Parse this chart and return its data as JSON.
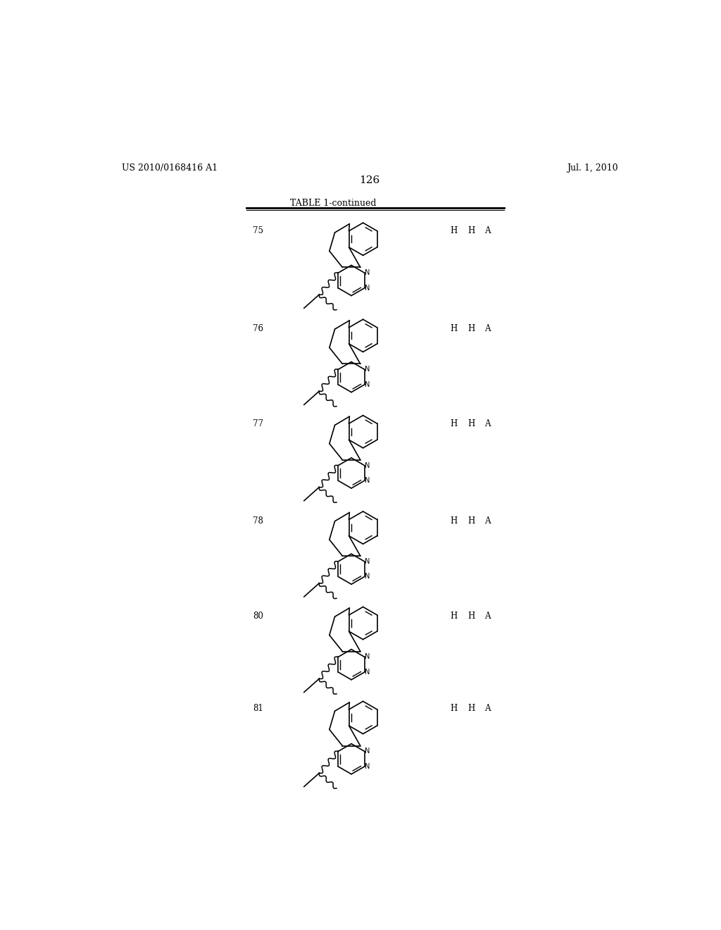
{
  "background_color": "#ffffff",
  "page_number": "126",
  "left_header": "US 2010/0168416 A1",
  "right_header": "Jul. 1, 2010",
  "table_title": "TABLE 1-continued",
  "rows": [
    {
      "number": "75",
      "r1": "H",
      "r2": "H",
      "r3": "A"
    },
    {
      "number": "76",
      "r1": "H",
      "r2": "H",
      "r3": "A"
    },
    {
      "number": "77",
      "r1": "H",
      "r2": "H",
      "r3": "A"
    },
    {
      "number": "78",
      "r1": "H",
      "r2": "H",
      "r3": "A"
    },
    {
      "number": "80",
      "r1": "H",
      "r2": "H",
      "r3": "A"
    },
    {
      "number": "81",
      "r1": "H",
      "r2": "H",
      "r3": "A"
    }
  ]
}
